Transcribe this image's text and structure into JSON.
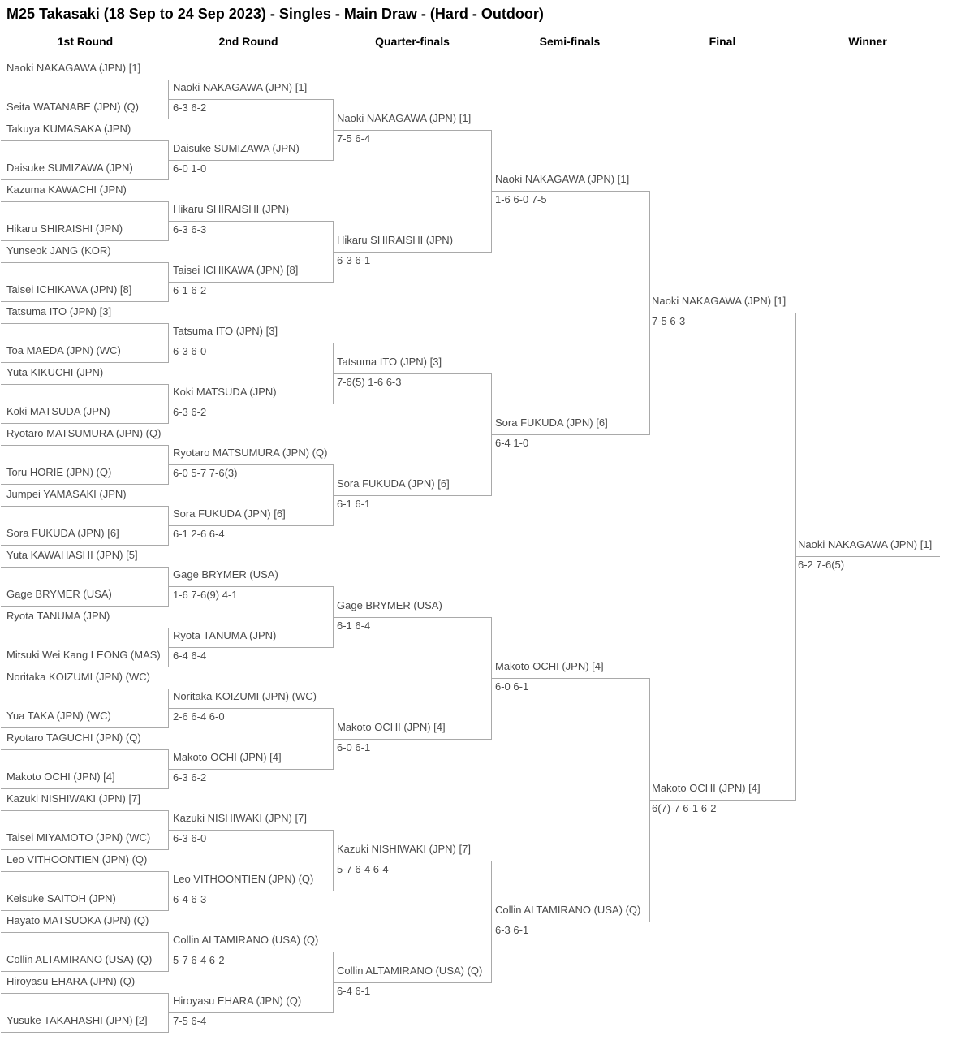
{
  "title": "M25 Takasaki (18 Sep to 24 Sep 2023) - Singles - Main Draw - (Hard - Outdoor)",
  "columns": [
    "1st Round",
    "2nd Round",
    "Quarter-finals",
    "Semi-finals",
    "Final",
    "Winner"
  ],
  "colors": {
    "line": "#a9a9a9",
    "entry_text": "#4a4a4a",
    "heading_text": "#000000"
  },
  "rounds": {
    "round1": [
      {
        "name": "Naoki NAKAGAWA (JPN) [1]"
      },
      {
        "name": "Seita WATANABE (JPN) (Q)"
      },
      {
        "name": "Takuya KUMASAKA (JPN)"
      },
      {
        "name": "Daisuke SUMIZAWA (JPN)"
      },
      {
        "name": "Kazuma KAWACHI (JPN)"
      },
      {
        "name": "Hikaru SHIRAISHI (JPN)"
      },
      {
        "name": "Yunseok JANG (KOR)"
      },
      {
        "name": "Taisei ICHIKAWA (JPN) [8]"
      },
      {
        "name": "Tatsuma ITO (JPN) [3]"
      },
      {
        "name": "Toa MAEDA (JPN) (WC)"
      },
      {
        "name": "Yuta KIKUCHI (JPN)"
      },
      {
        "name": "Koki MATSUDA (JPN)"
      },
      {
        "name": "Ryotaro MATSUMURA (JPN) (Q)"
      },
      {
        "name": "Toru HORIE (JPN) (Q)"
      },
      {
        "name": "Jumpei YAMASAKI (JPN)"
      },
      {
        "name": "Sora FUKUDA (JPN) [6]"
      },
      {
        "name": "Yuta KAWAHASHI (JPN) [5]"
      },
      {
        "name": "Gage BRYMER (USA)"
      },
      {
        "name": "Ryota TANUMA (JPN)"
      },
      {
        "name": "Mitsuki Wei Kang LEONG (MAS)"
      },
      {
        "name": "Noritaka KOIZUMI (JPN) (WC)"
      },
      {
        "name": "Yua TAKA (JPN) (WC)"
      },
      {
        "name": "Ryotaro TAGUCHI (JPN) (Q)"
      },
      {
        "name": "Makoto OCHI (JPN) [4]"
      },
      {
        "name": "Kazuki NISHIWAKI (JPN) [7]"
      },
      {
        "name": "Taisei MIYAMOTO (JPN) (WC)"
      },
      {
        "name": "Leo VITHOONTIEN (JPN) (Q)"
      },
      {
        "name": "Keisuke SAITOH (JPN)"
      },
      {
        "name": "Hayato MATSUOKA (JPN) (Q)"
      },
      {
        "name": "Collin ALTAMIRANO (USA) (Q)"
      },
      {
        "name": "Hiroyasu EHARA (JPN) (Q)"
      },
      {
        "name": "Yusuke TAKAHASHI (JPN) [2]"
      }
    ],
    "round2": [
      {
        "name": "Naoki NAKAGAWA (JPN) [1]",
        "score": "6-3 6-2"
      },
      {
        "name": "Daisuke SUMIZAWA (JPN)",
        "score": "6-0 1-0"
      },
      {
        "name": "Hikaru SHIRAISHI (JPN)",
        "score": "6-3 6-3"
      },
      {
        "name": "Taisei ICHIKAWA (JPN) [8]",
        "score": "6-1 6-2"
      },
      {
        "name": "Tatsuma ITO (JPN) [3]",
        "score": "6-3 6-0"
      },
      {
        "name": "Koki MATSUDA (JPN)",
        "score": "6-3 6-2"
      },
      {
        "name": "Ryotaro MATSUMURA (JPN) (Q)",
        "score": "6-0 5-7 7-6(3)"
      },
      {
        "name": "Sora FUKUDA (JPN) [6]",
        "score": "6-1 2-6 6-4"
      },
      {
        "name": "Gage BRYMER (USA)",
        "score": "1-6 7-6(9) 4-1"
      },
      {
        "name": "Ryota TANUMA (JPN)",
        "score": "6-4 6-4"
      },
      {
        "name": "Noritaka KOIZUMI (JPN) (WC)",
        "score": "2-6 6-4 6-0"
      },
      {
        "name": "Makoto OCHI (JPN) [4]",
        "score": "6-3 6-2"
      },
      {
        "name": "Kazuki NISHIWAKI (JPN) [7]",
        "score": "6-3 6-0"
      },
      {
        "name": "Leo VITHOONTIEN (JPN) (Q)",
        "score": "6-4 6-3"
      },
      {
        "name": "Collin ALTAMIRANO (USA) (Q)",
        "score": "5-7 6-4 6-2"
      },
      {
        "name": "Hiroyasu EHARA (JPN) (Q)",
        "score": "7-5 6-4"
      }
    ],
    "quarterfinals": [
      {
        "name": "Naoki NAKAGAWA (JPN) [1]",
        "score": "7-5 6-4"
      },
      {
        "name": "Hikaru SHIRAISHI (JPN)",
        "score": "6-3 6-1"
      },
      {
        "name": "Tatsuma ITO (JPN) [3]",
        "score": "7-6(5) 1-6 6-3"
      },
      {
        "name": "Sora FUKUDA (JPN) [6]",
        "score": "6-1 6-1"
      },
      {
        "name": "Gage BRYMER (USA)",
        "score": "6-1 6-4"
      },
      {
        "name": "Makoto OCHI (JPN) [4]",
        "score": "6-0 6-1"
      },
      {
        "name": "Kazuki NISHIWAKI (JPN) [7]",
        "score": "5-7 6-4 6-4"
      },
      {
        "name": "Collin ALTAMIRANO (USA) (Q)",
        "score": "6-4 6-1"
      }
    ],
    "semifinals": [
      {
        "name": "Naoki NAKAGAWA (JPN) [1]",
        "score": "1-6 6-0 7-5"
      },
      {
        "name": "Sora FUKUDA (JPN) [6]",
        "score": "6-4 1-0"
      },
      {
        "name": "Makoto OCHI (JPN) [4]",
        "score": "6-0 6-1"
      },
      {
        "name": "Collin ALTAMIRANO (USA) (Q)",
        "score": "6-3 6-1"
      }
    ],
    "final": [
      {
        "name": "Naoki NAKAGAWA (JPN) [1]",
        "score": "7-5 6-3"
      },
      {
        "name": "Makoto OCHI (JPN) [4]",
        "score": "6(7)-7 6-1 6-2"
      }
    ],
    "winner": [
      {
        "name": "Naoki NAKAGAWA (JPN) [1]",
        "score": "6-2 7-6(5)"
      }
    ]
  }
}
